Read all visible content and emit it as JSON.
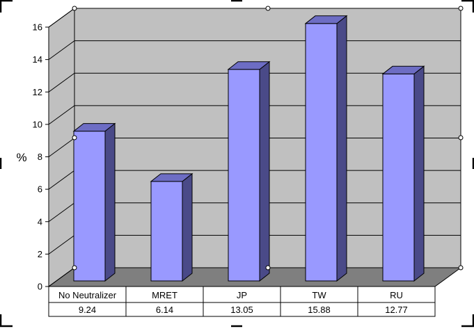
{
  "chart_data": {
    "type": "bar",
    "categories": [
      "No Neutralizer",
      "MRET",
      "JP",
      "TW",
      "RU"
    ],
    "values": [
      9.24,
      6.14,
      13.05,
      15.88,
      12.77
    ],
    "value_labels": [
      "9.24",
      "6.14",
      "13.05",
      "15.88",
      "12.77"
    ],
    "ylabel": "%",
    "ylim": [
      0,
      16
    ],
    "yticks": [
      0,
      2,
      4,
      6,
      8,
      10,
      12,
      14,
      16
    ],
    "grid": true,
    "data_table": true,
    "colors": {
      "bar_front": "#9999ff",
      "bar_side": "#4a4a88",
      "bar_top": "#6d6dc4",
      "wall": "#c0c0c0",
      "floor": "#7f7f7f"
    }
  }
}
